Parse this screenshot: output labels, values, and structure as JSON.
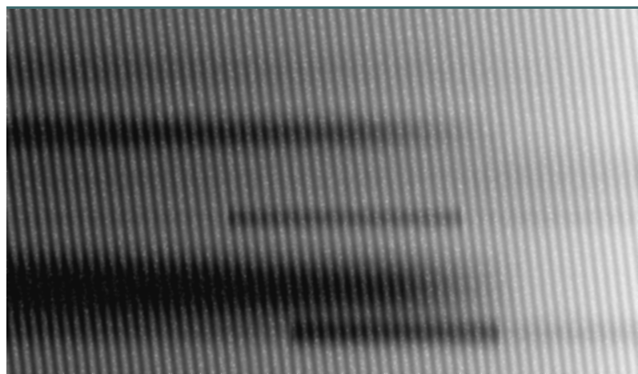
{
  "image": {
    "subject": "spectrogram",
    "colormap": "grayscale",
    "palette": {
      "dark": "#141414",
      "mid": "#7d7d7d",
      "light": "#d6d6d6",
      "highlight": "#f5f5f5",
      "top_stripe": "#3f6b6e",
      "stripe_pink": "#d7a1b8",
      "stripe_teal": "#7fb6b3"
    }
  }
}
